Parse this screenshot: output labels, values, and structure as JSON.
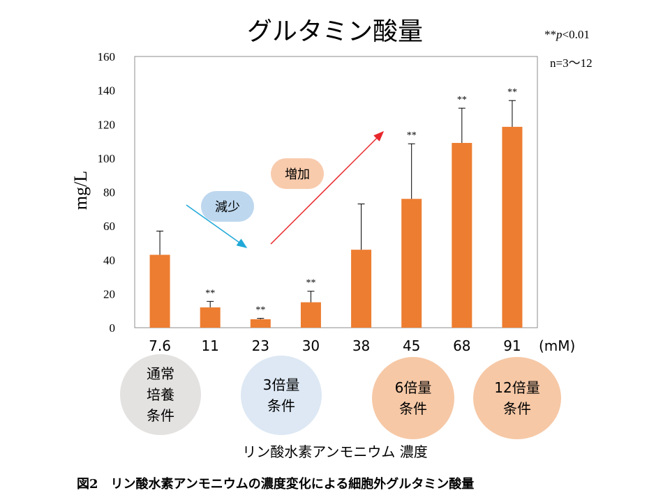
{
  "title": "グルタミン酸量",
  "significance": {
    "prefix": "**",
    "p": "p",
    "rest": "<0.01"
  },
  "n_note": "n=3～12",
  "unit": "(mM)",
  "arrows": {
    "decrease": "減少",
    "increase": "増加"
  },
  "conditions": [
    {
      "label": "通常\n培養\n条件",
      "color": "#e4e2e1"
    },
    {
      "label": "3倍量\n条件",
      "color": "#dde8f4"
    },
    {
      "label": "6倍量\n条件",
      "color": "#f6c8a6"
    },
    {
      "label": "12倍量\n条件",
      "color": "#f6c8a6"
    }
  ],
  "x_caption": "リン酸水素アンモニウム 濃度",
  "figure_caption": "図2　リン酸水素アンモニウムの濃度変化による細胞外グルタミン酸量",
  "colors": {
    "bar": "#ed7d31",
    "decrease_arrow": "#1fa8d8",
    "increase_arrow": "#e8262b",
    "decrease_label_bg": "#bdd7ee",
    "increase_label_bg": "#f8cbad"
  },
  "chart_data": {
    "type": "bar",
    "title": "グルタミン酸量",
    "xlabel": "",
    "ylabel": "mg/L",
    "ylim": [
      0,
      160
    ],
    "yticks": [
      0,
      20,
      40,
      60,
      80,
      100,
      120,
      140,
      160
    ],
    "grid": false,
    "categories": [
      "7.6",
      "11",
      "23",
      "30",
      "38",
      "45",
      "68",
      "91"
    ],
    "values": [
      43,
      12,
      5,
      15,
      46,
      76,
      109,
      118.5
    ],
    "error_upper": [
      57,
      15.5,
      5.5,
      21.5,
      73,
      108.5,
      129.5,
      134
    ],
    "significance": [
      "",
      "**",
      "**",
      "**",
      "",
      "**",
      "**",
      "**"
    ]
  }
}
